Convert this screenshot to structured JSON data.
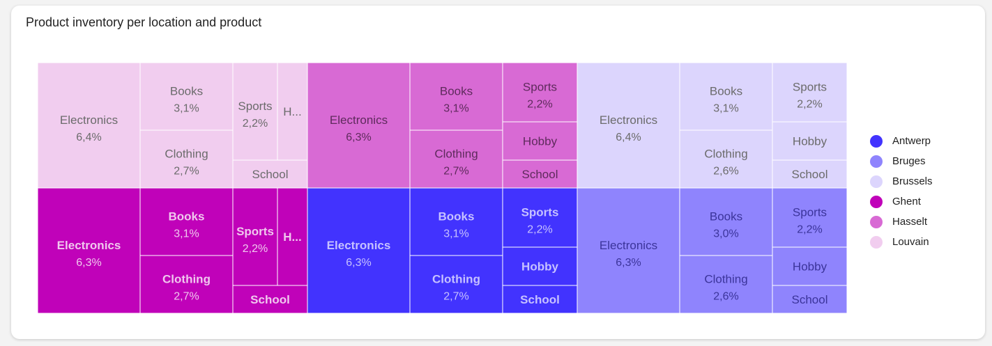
{
  "title": "Product inventory per location and product",
  "chart_data": {
    "type": "treemap",
    "title": "Product inventory per location and product",
    "value_format": "percent_comma_decimal",
    "locations": [
      {
        "name": "Louvain",
        "color": "#f1cdef",
        "text_color": "#6b6b6b",
        "bold": false,
        "items": [
          {
            "name": "Electronics",
            "value": 6.4,
            "label": "Electronics",
            "value_label": "6,4%"
          },
          {
            "name": "Books",
            "value": 3.1,
            "label": "Books",
            "value_label": "3,1%"
          },
          {
            "name": "Clothing",
            "value": 2.7,
            "label": "Clothing",
            "value_label": "2,7%"
          },
          {
            "name": "Sports",
            "value": 2.2,
            "label": "Sports",
            "value_label": "2,2%"
          },
          {
            "name": "Hobby",
            "label": "H..."
          },
          {
            "name": "School",
            "label": "School"
          }
        ]
      },
      {
        "name": "Hasselt",
        "color": "#d86ad4",
        "text_color": "#5e2a5c",
        "bold": false,
        "items": [
          {
            "name": "Electronics",
            "value": 6.3,
            "label": "Electronics",
            "value_label": "6,3%"
          },
          {
            "name": "Books",
            "value": 3.1,
            "label": "Books",
            "value_label": "3,1%"
          },
          {
            "name": "Clothing",
            "value": 2.7,
            "label": "Clothing",
            "value_label": "2,7%"
          },
          {
            "name": "Sports",
            "value": 2.2,
            "label": "Sports",
            "value_label": "2,2%"
          },
          {
            "name": "Hobby",
            "label": "Hobby"
          },
          {
            "name": "School",
            "label": "School"
          }
        ]
      },
      {
        "name": "Brussels",
        "color": "#dcd5fd",
        "text_color": "#6b6b6b",
        "bold": false,
        "items": [
          {
            "name": "Electronics",
            "value": 6.4,
            "label": "Electronics",
            "value_label": "6,4%"
          },
          {
            "name": "Books",
            "value": 3.1,
            "label": "Books",
            "value_label": "3,1%"
          },
          {
            "name": "Clothing",
            "value": 2.6,
            "label": "Clothing",
            "value_label": "2,6%"
          },
          {
            "name": "Sports",
            "value": 2.2,
            "label": "Sports",
            "value_label": "2,2%"
          },
          {
            "name": "Hobby",
            "label": "Hobby"
          },
          {
            "name": "School",
            "label": "School"
          }
        ]
      },
      {
        "name": "Ghent",
        "color": "#c002b9",
        "text_color": "#f0c8ee",
        "bold": true,
        "items": [
          {
            "name": "Electronics",
            "value": 6.3,
            "label": "Electronics",
            "value_label": "6,3%"
          },
          {
            "name": "Books",
            "value": 3.1,
            "label": "Books",
            "value_label": "3,1%"
          },
          {
            "name": "Clothing",
            "value": 2.7,
            "label": "Clothing",
            "value_label": "2,7%"
          },
          {
            "name": "Sports",
            "value": 2.2,
            "label": "Sports",
            "value_label": "2,2%"
          },
          {
            "name": "Hobby",
            "label": "H..."
          },
          {
            "name": "School",
            "label": "School"
          }
        ]
      },
      {
        "name": "Antwerp",
        "color": "#4233fe",
        "text_color": "#c6c1ff",
        "bold": true,
        "items": [
          {
            "name": "Electronics",
            "value": 6.3,
            "label": "Electronics",
            "value_label": "6,3%"
          },
          {
            "name": "Books",
            "value": 3.1,
            "label": "Books",
            "value_label": "3,1%"
          },
          {
            "name": "Clothing",
            "value": 2.7,
            "label": "Clothing",
            "value_label": "2,7%"
          },
          {
            "name": "Sports",
            "value": 2.2,
            "label": "Sports",
            "value_label": "2,2%"
          },
          {
            "name": "Hobby",
            "label": "Hobby"
          },
          {
            "name": "School",
            "label": "School"
          }
        ]
      },
      {
        "name": "Bruges",
        "color": "#8f84fd",
        "text_color": "#3b349a",
        "bold": false,
        "items": [
          {
            "name": "Electronics",
            "value": 6.3,
            "label": "Electronics",
            "value_label": "6,3%"
          },
          {
            "name": "Books",
            "value": 3.0,
            "label": "Books",
            "value_label": "3,0%"
          },
          {
            "name": "Clothing",
            "value": 2.6,
            "label": "Clothing",
            "value_label": "2,6%"
          },
          {
            "name": "Sports",
            "value": 2.2,
            "label": "Sports",
            "value_label": "2,2%"
          },
          {
            "name": "Hobby",
            "label": "Hobby"
          },
          {
            "name": "School",
            "label": "School"
          }
        ]
      }
    ],
    "legend": {
      "position": "right",
      "items": [
        {
          "label": "Antwerp",
          "color": "#4233fe"
        },
        {
          "label": "Bruges",
          "color": "#8f84fd"
        },
        {
          "label": "Brussels",
          "color": "#dcd5fd"
        },
        {
          "label": "Ghent",
          "color": "#c002b9"
        },
        {
          "label": "Hasselt",
          "color": "#d86ad4"
        },
        {
          "label": "Louvain",
          "color": "#f1cdef"
        }
      ]
    }
  }
}
